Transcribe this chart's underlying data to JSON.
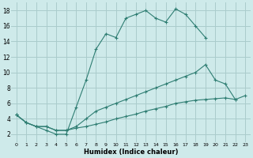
{
  "xlabel": "Humidex (Indice chaleur)",
  "bg_color": "#ceeaea",
  "grid_color": "#aacccc",
  "line_color": "#2e7d72",
  "xlim": [
    -0.5,
    23.5
  ],
  "ylim": [
    1.0,
    19.0
  ],
  "xticks": [
    0,
    1,
    2,
    3,
    4,
    5,
    6,
    7,
    8,
    9,
    10,
    11,
    12,
    13,
    14,
    15,
    16,
    17,
    18,
    19,
    20,
    21,
    22,
    23
  ],
  "yticks": [
    2,
    4,
    6,
    8,
    10,
    12,
    14,
    16,
    18
  ],
  "line1_x": [
    0,
    1,
    2,
    3,
    4,
    5,
    6,
    7,
    8,
    9,
    10,
    11,
    12,
    13,
    14,
    15,
    16,
    17,
    18,
    19
  ],
  "line1_y": [
    4.5,
    3.5,
    3.0,
    2.5,
    2.0,
    2.0,
    5.5,
    9.0,
    13.0,
    15.0,
    14.5,
    17.0,
    17.5,
    18.0,
    17.0,
    16.5,
    18.2,
    17.5,
    16.0,
    14.5
  ],
  "line2_x": [
    0,
    1,
    2,
    3,
    4,
    5,
    6,
    7,
    8,
    9,
    10,
    11,
    12,
    13,
    14,
    15,
    16,
    17,
    18,
    19,
    20,
    21,
    22
  ],
  "line2_y": [
    4.5,
    3.5,
    3.0,
    3.0,
    2.5,
    2.5,
    3.0,
    4.0,
    5.0,
    5.5,
    6.0,
    6.5,
    7.0,
    7.5,
    8.0,
    8.5,
    9.0,
    9.5,
    10.0,
    11.0,
    9.0,
    8.5,
    6.5
  ],
  "line3_x": [
    0,
    1,
    2,
    3,
    4,
    5,
    6,
    7,
    8,
    9,
    10,
    11,
    12,
    13,
    14,
    15,
    16,
    17,
    18,
    19,
    20,
    21,
    22,
    23
  ],
  "line3_y": [
    4.5,
    3.5,
    3.0,
    3.0,
    2.5,
    2.5,
    2.8,
    3.0,
    3.3,
    3.6,
    4.0,
    4.3,
    4.6,
    5.0,
    5.3,
    5.6,
    6.0,
    6.2,
    6.4,
    6.5,
    6.6,
    6.7,
    6.5,
    7.0
  ]
}
